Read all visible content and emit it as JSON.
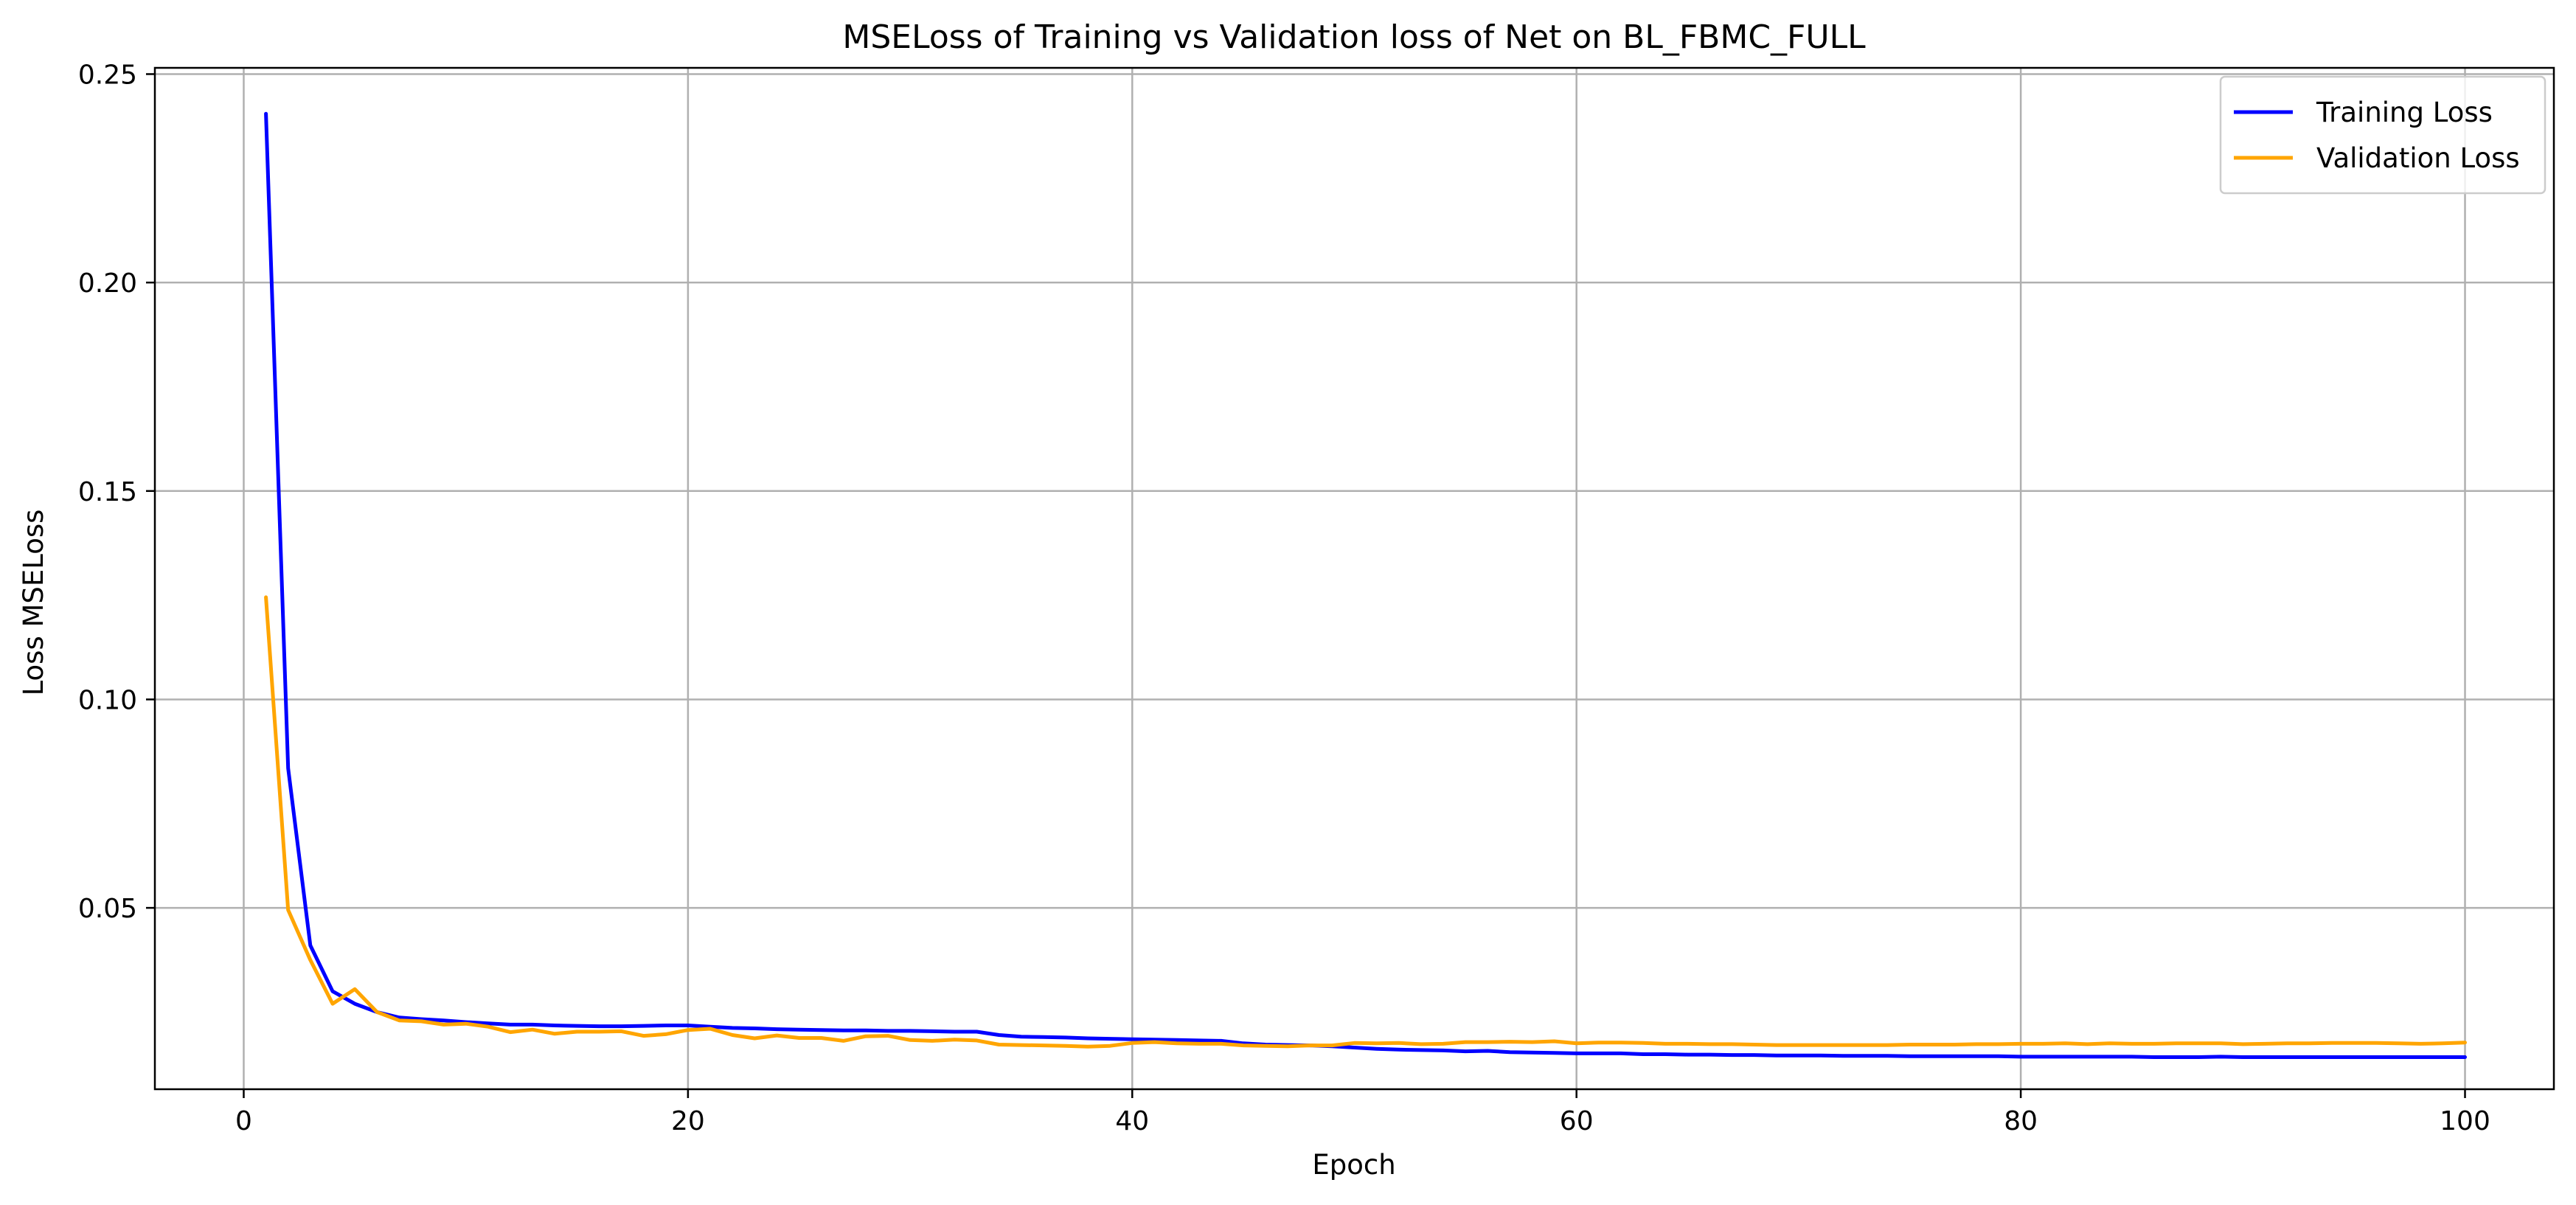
{
  "chart_data": {
    "type": "line",
    "title": "MSELoss of Training vs Validation loss of Net on BL_FBMC_FULL",
    "xlabel": "Epoch",
    "ylabel": "Loss MSELoss",
    "xlim": [
      -4,
      104
    ],
    "ylim": [
      0.0065,
      0.2515
    ],
    "xticks": [
      0,
      20,
      40,
      60,
      80,
      100
    ],
    "yticks": [
      0.05,
      0.1,
      0.15,
      0.2,
      0.25
    ],
    "xtick_labels": [
      "0",
      "20",
      "40",
      "60",
      "80",
      "100"
    ],
    "ytick_labels": [
      "0.05",
      "0.10",
      "0.15",
      "0.20",
      "0.25"
    ],
    "grid": true,
    "legend": "top-right",
    "series": [
      {
        "name": "Training Loss",
        "color": "#0000ff",
        "x": [
          1,
          2,
          3,
          4,
          5,
          6,
          7,
          8,
          9,
          10,
          11,
          12,
          13,
          14,
          15,
          16,
          17,
          18,
          19,
          20,
          21,
          22,
          23,
          24,
          25,
          26,
          27,
          28,
          29,
          30,
          31,
          32,
          33,
          34,
          35,
          36,
          37,
          38,
          39,
          40,
          41,
          42,
          43,
          44,
          45,
          46,
          47,
          48,
          49,
          50,
          51,
          52,
          53,
          54,
          55,
          56,
          57,
          58,
          59,
          60,
          61,
          62,
          63,
          64,
          65,
          66,
          67,
          68,
          69,
          70,
          71,
          72,
          73,
          74,
          75,
          76,
          77,
          78,
          79,
          80,
          81,
          82,
          83,
          84,
          85,
          86,
          87,
          88,
          89,
          90,
          91,
          92,
          93,
          94,
          95,
          96,
          97,
          98,
          99,
          100
        ],
        "values": [
          0.2405,
          0.0835,
          0.041,
          0.03,
          0.027,
          0.025,
          0.0237,
          0.0233,
          0.023,
          0.0226,
          0.0223,
          0.022,
          0.022,
          0.0218,
          0.0217,
          0.0216,
          0.0216,
          0.0217,
          0.0218,
          0.0218,
          0.0215,
          0.0212,
          0.0211,
          0.0209,
          0.0208,
          0.0207,
          0.0206,
          0.0206,
          0.0205,
          0.0205,
          0.0204,
          0.0203,
          0.0203,
          0.0195,
          0.0191,
          0.019,
          0.0189,
          0.0187,
          0.0186,
          0.0185,
          0.0184,
          0.0183,
          0.0182,
          0.0181,
          0.0175,
          0.0172,
          0.0171,
          0.017,
          0.0168,
          0.0165,
          0.0162,
          0.016,
          0.0159,
          0.0158,
          0.0156,
          0.0157,
          0.0154,
          0.0153,
          0.0152,
          0.0151,
          0.0151,
          0.0151,
          0.0149,
          0.0149,
          0.0148,
          0.0148,
          0.0147,
          0.0147,
          0.0146,
          0.0146,
          0.0146,
          0.0145,
          0.0145,
          0.0145,
          0.0144,
          0.0144,
          0.0144,
          0.0144,
          0.0144,
          0.0143,
          0.0143,
          0.0143,
          0.0143,
          0.0143,
          0.0143,
          0.0142,
          0.0142,
          0.0142,
          0.0143,
          0.0142,
          0.0142,
          0.0142,
          0.0142,
          0.0142,
          0.0142,
          0.0142,
          0.0142,
          0.0142,
          0.0142,
          0.0142
        ]
      },
      {
        "name": "Validation Loss",
        "color": "#ffa500",
        "x": [
          1,
          2,
          3,
          4,
          5,
          6,
          7,
          8,
          9,
          10,
          11,
          12,
          13,
          14,
          15,
          16,
          17,
          18,
          19,
          20,
          21,
          22,
          23,
          24,
          25,
          26,
          27,
          28,
          29,
          30,
          31,
          32,
          33,
          34,
          35,
          36,
          37,
          38,
          39,
          40,
          41,
          42,
          43,
          44,
          45,
          46,
          47,
          48,
          49,
          50,
          51,
          52,
          53,
          54,
          55,
          56,
          57,
          58,
          59,
          60,
          61,
          62,
          63,
          64,
          65,
          66,
          67,
          68,
          69,
          70,
          71,
          72,
          73,
          74,
          75,
          76,
          77,
          78,
          79,
          80,
          81,
          82,
          83,
          84,
          85,
          86,
          87,
          88,
          89,
          90,
          91,
          92,
          93,
          94,
          95,
          96,
          97,
          98,
          99,
          100
        ],
        "values": [
          0.1245,
          0.0495,
          0.0375,
          0.027,
          0.0305,
          0.025,
          0.023,
          0.0228,
          0.022,
          0.0222,
          0.0215,
          0.0202,
          0.0208,
          0.0198,
          0.0203,
          0.0203,
          0.0204,
          0.0193,
          0.0197,
          0.0207,
          0.021,
          0.0195,
          0.0187,
          0.0194,
          0.0188,
          0.0188,
          0.0181,
          0.0192,
          0.0193,
          0.0183,
          0.0181,
          0.0184,
          0.0182,
          0.0172,
          0.0171,
          0.017,
          0.0169,
          0.0167,
          0.0169,
          0.0176,
          0.0178,
          0.0175,
          0.0174,
          0.0174,
          0.017,
          0.0169,
          0.0168,
          0.017,
          0.017,
          0.0176,
          0.0175,
          0.0176,
          0.0173,
          0.0174,
          0.0178,
          0.0178,
          0.0179,
          0.0178,
          0.018,
          0.0175,
          0.0177,
          0.0177,
          0.0176,
          0.0174,
          0.0174,
          0.0173,
          0.0173,
          0.0172,
          0.0171,
          0.0171,
          0.0171,
          0.0171,
          0.0171,
          0.0171,
          0.0172,
          0.0172,
          0.0172,
          0.0173,
          0.0173,
          0.0174,
          0.0174,
          0.0175,
          0.0173,
          0.0175,
          0.0174,
          0.0174,
          0.0175,
          0.0175,
          0.0175,
          0.0173,
          0.0174,
          0.0175,
          0.0175,
          0.0176,
          0.0176,
          0.0176,
          0.0175,
          0.0174,
          0.0175,
          0.0177
        ]
      }
    ]
  }
}
